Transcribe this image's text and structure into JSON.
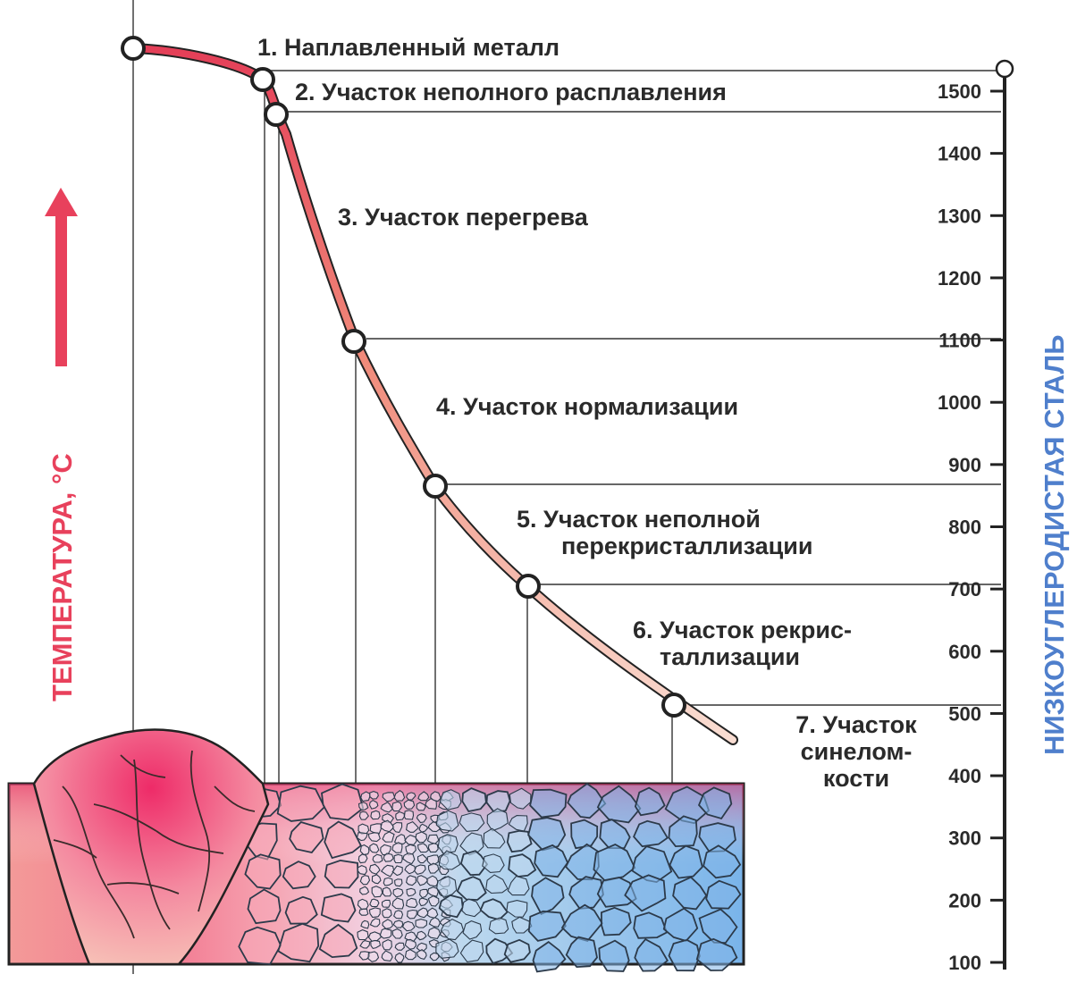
{
  "diagram": {
    "axis_title_left": "ТЕМПЕРАТУРА, °С",
    "axis_title_right": "НИЗКОУГЛЕРОДИСТАЯ СТАЛЬ",
    "ticks": [
      "1500",
      "1400",
      "1300",
      "1200",
      "1100",
      "1000",
      "900",
      "800",
      "700",
      "600",
      "500",
      "400",
      "300",
      "200",
      "100"
    ],
    "zones": [
      {
        "lines": [
          "1. Наплавленный металл"
        ]
      },
      {
        "lines": [
          "2. Участок неполного расплавления"
        ]
      },
      {
        "lines": [
          "3. Участок перегрева"
        ]
      },
      {
        "lines": [
          "4. Участок нормализации"
        ]
      },
      {
        "lines": [
          "5. Участок неполной",
          "перекристаллизации"
        ]
      },
      {
        "lines": [
          "6. Участок рекрис-",
          "таллизации"
        ]
      },
      {
        "lines": [
          "7. Участок",
          "синелом-",
          "кости"
        ]
      }
    ],
    "colors": {
      "hot": "#e83a5c",
      "warm": "#f6b6a6",
      "cold": "#7fb3e6",
      "arrow": "#e8415c",
      "right_title": "#4f7fcc",
      "line": "#333333"
    }
  }
}
